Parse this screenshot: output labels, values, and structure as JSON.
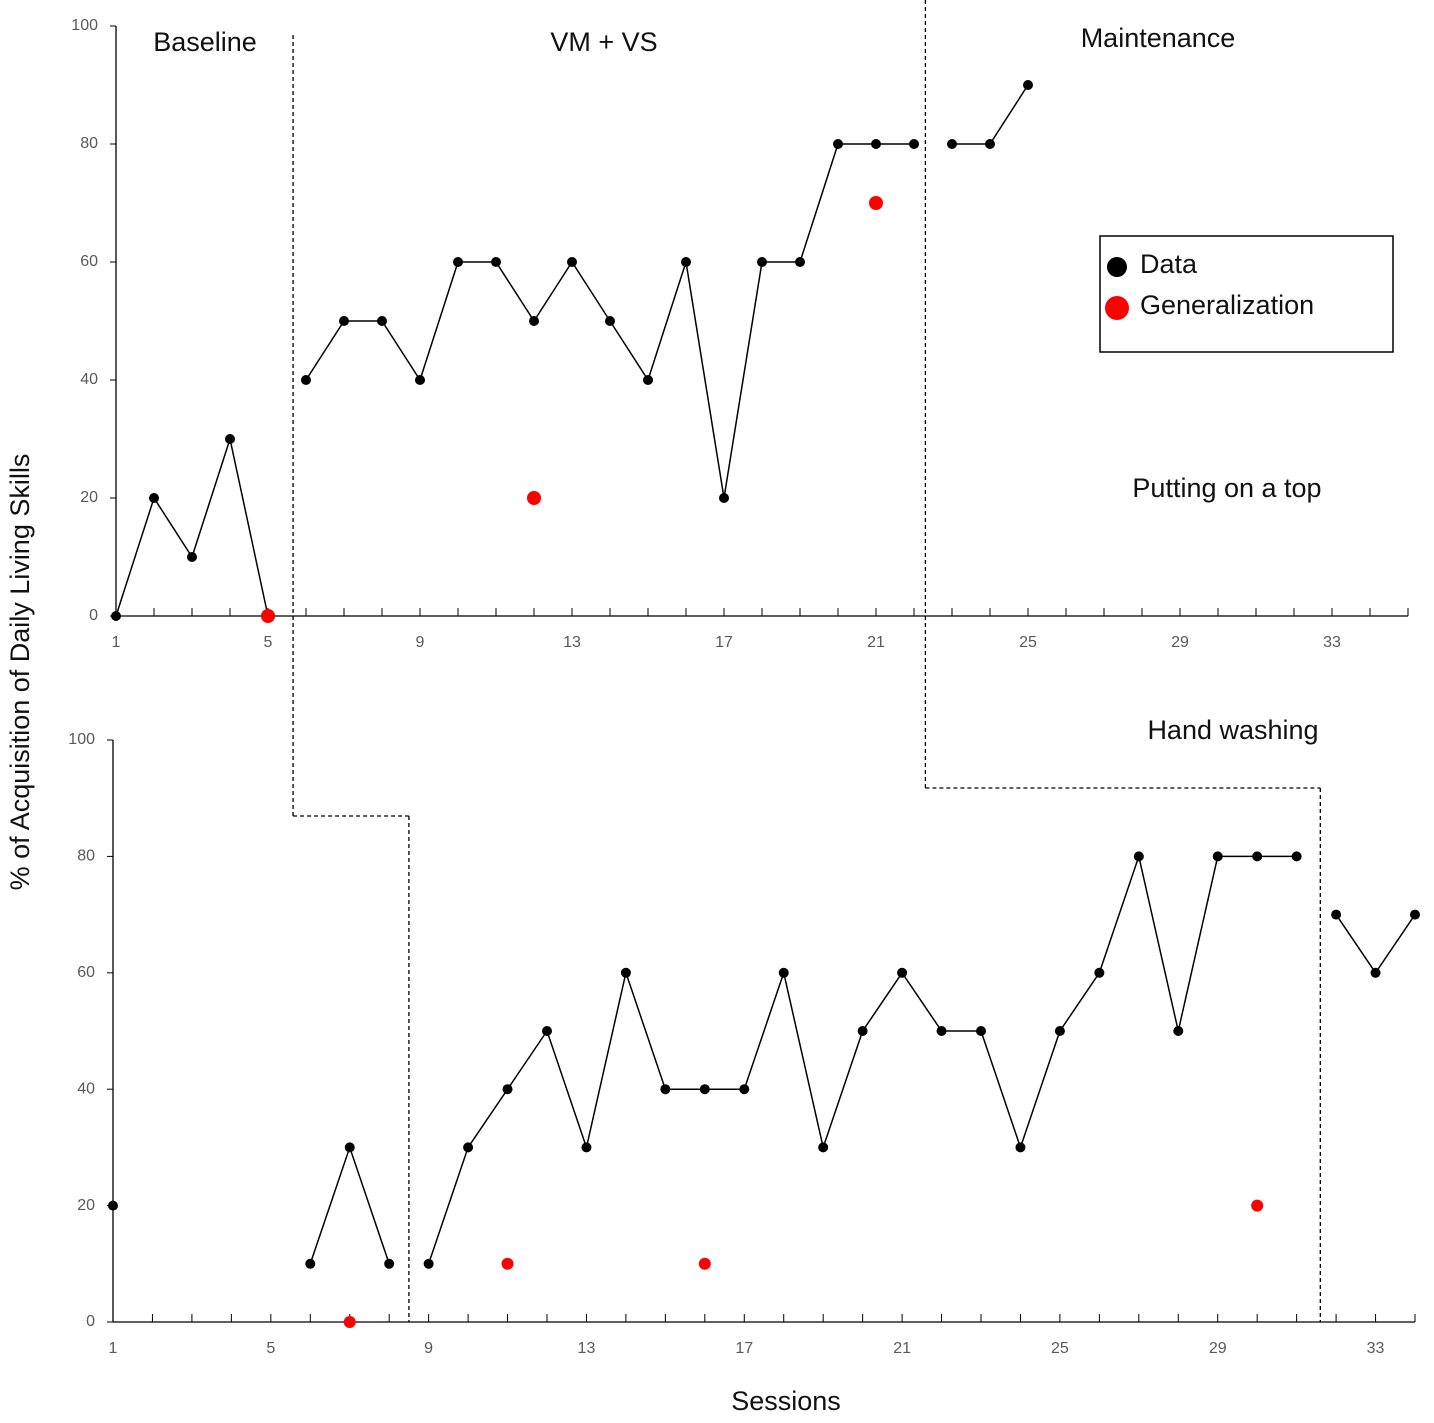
{
  "chart_data": [
    {
      "type": "line",
      "title": "Putting on a top",
      "ylabel": "% of Acquisition of Daily Living Skills",
      "annotations": [
        "Baseline",
        "VM + VS",
        "Maintenance"
      ],
      "x": [
        1,
        2,
        3,
        4,
        5,
        6,
        7,
        8,
        9,
        10,
        11,
        12,
        13,
        14,
        15,
        16,
        17,
        18,
        19,
        20,
        21,
        22,
        23,
        24,
        25
      ],
      "series": [
        {
          "name": "Data",
          "color": "#000000",
          "values": [
            0,
            20,
            10,
            30,
            0,
            40,
            50,
            50,
            40,
            60,
            60,
            50,
            60,
            50,
            40,
            60,
            20,
            60,
            60,
            80,
            80,
            80,
            80,
            80,
            90
          ]
        },
        {
          "name": "Generalization",
          "color": "#ff0000",
          "values": [
            null,
            null,
            null,
            null,
            0,
            null,
            null,
            null,
            null,
            null,
            null,
            20,
            null,
            null,
            null,
            null,
            null,
            null,
            null,
            null,
            70,
            null,
            null,
            null,
            null
          ]
        }
      ],
      "phase_changes": [
        5.66,
        22.3
      ],
      "xlim": [
        1,
        35
      ],
      "xticks": [
        1,
        5,
        9,
        13,
        17,
        21,
        25,
        29,
        33
      ],
      "xminorticks": [
        1,
        2,
        3,
        4,
        5,
        6,
        7,
        8,
        9,
        10,
        11,
        12,
        13,
        14,
        15,
        16,
        17,
        18,
        19,
        20,
        21,
        22,
        23,
        24,
        25,
        26,
        27,
        28,
        29,
        30,
        31,
        32,
        33,
        34,
        35
      ],
      "ylim": [
        0,
        100
      ],
      "yticks": [
        0,
        20,
        40,
        60,
        80,
        100
      ]
    },
    {
      "type": "line",
      "title": "Hand washing",
      "xlabel": "Sessions",
      "x": [
        1,
        2,
        3,
        4,
        5,
        6,
        7,
        8,
        9,
        10,
        11,
        12,
        13,
        14,
        15,
        16,
        17,
        18,
        19,
        20,
        21,
        22,
        23,
        24,
        25,
        26,
        27,
        28,
        29,
        30,
        31,
        32,
        33,
        34
      ],
      "series": [
        {
          "name": "Data",
          "color": "#000000",
          "values": [
            20,
            null,
            null,
            null,
            null,
            10,
            30,
            10,
            10,
            30,
            40,
            50,
            30,
            60,
            40,
            40,
            40,
            60,
            30,
            50,
            60,
            50,
            50,
            30,
            50,
            60,
            80,
            50,
            80,
            80,
            80,
            70,
            60,
            70
          ]
        },
        {
          "name": "Generalization",
          "color": "#ff0000",
          "values": [
            null,
            null,
            null,
            null,
            null,
            null,
            0,
            null,
            null,
            null,
            10,
            null,
            null,
            null,
            null,
            10,
            null,
            null,
            null,
            null,
            null,
            null,
            null,
            null,
            null,
            null,
            null,
            null,
            null,
            20,
            null,
            null,
            null,
            null
          ]
        }
      ],
      "phase_changes": [
        8.5,
        31.6
      ],
      "xlim": [
        1,
        34
      ],
      "xticks": [
        1,
        5,
        9,
        13,
        17,
        21,
        25,
        29,
        33
      ],
      "xminorticks": [
        1,
        2,
        3,
        4,
        5,
        6,
        7,
        8,
        9,
        10,
        11,
        12,
        13,
        14,
        15,
        16,
        17,
        18,
        19,
        20,
        21,
        22,
        23,
        24,
        25,
        26,
        27,
        28,
        29,
        30,
        31,
        32,
        33,
        34
      ],
      "ylim": [
        0,
        100
      ],
      "yticks": [
        0,
        20,
        40,
        60,
        80,
        100
      ]
    }
  ]
}
